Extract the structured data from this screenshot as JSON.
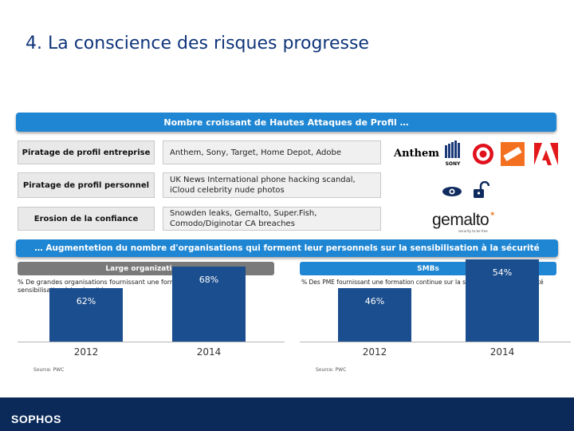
{
  "title": "4. La conscience des risques progresse",
  "banner_top": "Nombre croissant de Hautes Attaques de Profil …",
  "rows": [
    {
      "label": "Piratage de profil  entreprise",
      "text": "Anthem, Sony, Target, Home Depot, Adobe"
    },
    {
      "label": "Piratage de profil  personnel",
      "text": "UK News International phone hacking scandal, iCloud celebrity nude photos"
    },
    {
      "label": "Erosion de la confiance",
      "text": "Snowden leaks, Gemalto, Super.Fish, Comodo/Diginotar CA breaches"
    }
  ],
  "logos": {
    "anthem": "Anthem",
    "sony": "SONY",
    "gemalto": "gemalto",
    "gemalto_tag": "security to be free"
  },
  "banner_mid": "… Augmentetion du nombre d'organisations qui forment leur personnels sur la sensibilisation à la sécurité",
  "left_panel": {
    "header": "Large organizations",
    "header_color": "#7a7a7a",
    "desc": "% De grandes organisations fournissant une formation permanente de sensibilisation à la sécurité",
    "source": "Source: PWC"
  },
  "right_panel": {
    "header": "SMBs",
    "header_color": "#1f86d3",
    "desc": "% Des PME fournissant une formation continue sur la sensibilisation à la sécurité",
    "source": "Source: PWC"
  },
  "chart_data": [
    {
      "type": "bar",
      "categories": [
        "2012",
        "2014"
      ],
      "values": [
        62,
        68
      ],
      "labels": [
        "62%",
        "68%"
      ]
    },
    {
      "type": "bar",
      "categories": [
        "2012",
        "2014"
      ],
      "values": [
        46,
        54
      ],
      "labels": [
        "46%",
        "54%"
      ]
    }
  ],
  "footer": {
    "brand": "SOPHOS"
  }
}
